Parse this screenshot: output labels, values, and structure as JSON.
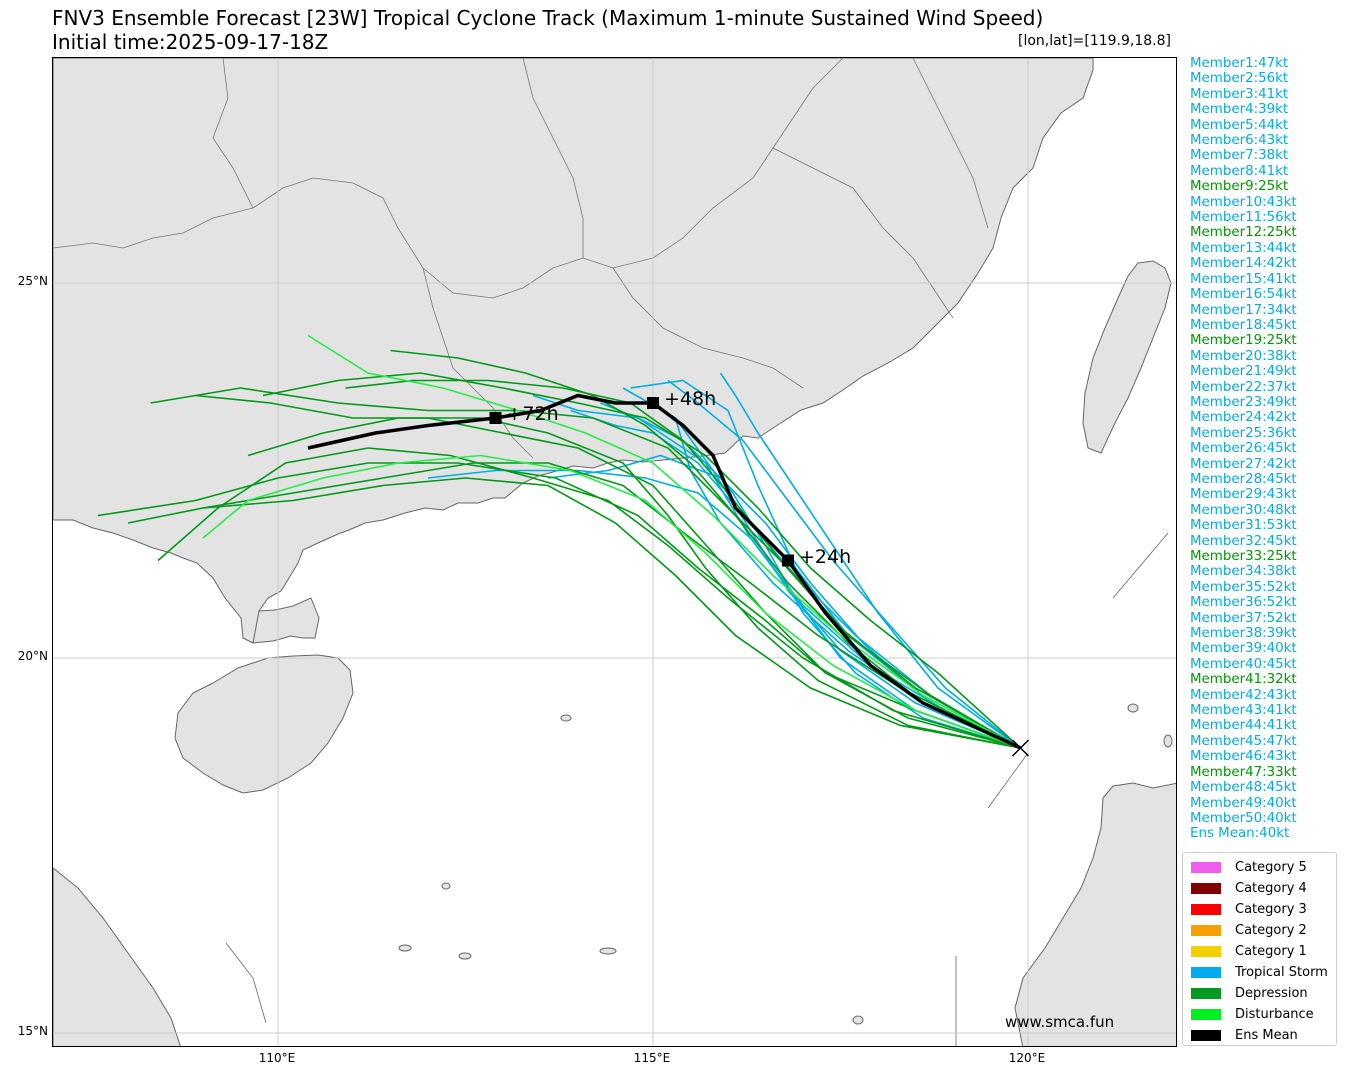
{
  "header": {
    "title": "FNV3 Ensemble Forecast [23W] Tropical Cyclone Track (Maximum 1-minute Sustained Wind Speed)",
    "subtitle": "Initial time:2025-09-17-18Z",
    "coord": "[lon,lat]=[119.9,18.8]"
  },
  "map": {
    "lon_range": [
      107.0,
      122.0
    ],
    "lat_range": [
      14.8,
      28.0
    ],
    "x_ticks": [
      "110°E",
      "115°E",
      "120°E"
    ],
    "y_ticks": [
      "25°N",
      "20°N",
      "15°N"
    ],
    "initial_position": [
      119.9,
      18.8
    ],
    "lead_labels": [
      "+24h",
      "+48h",
      "+72h"
    ],
    "land_color": "#e3e3e3",
    "coast_color": "#666666",
    "watermark": "www.smca.fun"
  },
  "members": [
    {
      "label": "Member1:47kt",
      "cat": "ts"
    },
    {
      "label": "Member2:56kt",
      "cat": "ts"
    },
    {
      "label": "Member3:41kt",
      "cat": "ts"
    },
    {
      "label": "Member4:39kt",
      "cat": "ts"
    },
    {
      "label": "Member5:44kt",
      "cat": "ts"
    },
    {
      "label": "Member6:43kt",
      "cat": "ts"
    },
    {
      "label": "Member7:38kt",
      "cat": "ts"
    },
    {
      "label": "Member8:41kt",
      "cat": "ts"
    },
    {
      "label": "Member9:25kt",
      "cat": "td"
    },
    {
      "label": "Member10:43kt",
      "cat": "ts"
    },
    {
      "label": "Member11:56kt",
      "cat": "ts"
    },
    {
      "label": "Member12:25kt",
      "cat": "td"
    },
    {
      "label": "Member13:44kt",
      "cat": "ts"
    },
    {
      "label": "Member14:42kt",
      "cat": "ts"
    },
    {
      "label": "Member15:41kt",
      "cat": "ts"
    },
    {
      "label": "Member16:54kt",
      "cat": "ts"
    },
    {
      "label": "Member17:34kt",
      "cat": "ts"
    },
    {
      "label": "Member18:45kt",
      "cat": "ts"
    },
    {
      "label": "Member19:25kt",
      "cat": "td"
    },
    {
      "label": "Member20:38kt",
      "cat": "ts"
    },
    {
      "label": "Member21:49kt",
      "cat": "ts"
    },
    {
      "label": "Member22:37kt",
      "cat": "ts"
    },
    {
      "label": "Member23:49kt",
      "cat": "ts"
    },
    {
      "label": "Member24:42kt",
      "cat": "ts"
    },
    {
      "label": "Member25:36kt",
      "cat": "ts"
    },
    {
      "label": "Member26:45kt",
      "cat": "ts"
    },
    {
      "label": "Member27:42kt",
      "cat": "ts"
    },
    {
      "label": "Member28:45kt",
      "cat": "ts"
    },
    {
      "label": "Member29:43kt",
      "cat": "ts"
    },
    {
      "label": "Member30:48kt",
      "cat": "ts"
    },
    {
      "label": "Member31:53kt",
      "cat": "ts"
    },
    {
      "label": "Member32:45kt",
      "cat": "ts"
    },
    {
      "label": "Member33:25kt",
      "cat": "td"
    },
    {
      "label": "Member34:38kt",
      "cat": "ts"
    },
    {
      "label": "Member35:52kt",
      "cat": "ts"
    },
    {
      "label": "Member36:52kt",
      "cat": "ts"
    },
    {
      "label": "Member37:52kt",
      "cat": "ts"
    },
    {
      "label": "Member38:39kt",
      "cat": "ts"
    },
    {
      "label": "Member39:40kt",
      "cat": "ts"
    },
    {
      "label": "Member40:45kt",
      "cat": "ts"
    },
    {
      "label": "Member41:32kt",
      "cat": "td"
    },
    {
      "label": "Member42:43kt",
      "cat": "ts"
    },
    {
      "label": "Member43:41kt",
      "cat": "ts"
    },
    {
      "label": "Member44:41kt",
      "cat": "ts"
    },
    {
      "label": "Member45:47kt",
      "cat": "ts"
    },
    {
      "label": "Member46:43kt",
      "cat": "ts"
    },
    {
      "label": "Member47:33kt",
      "cat": "td"
    },
    {
      "label": "Member48:45kt",
      "cat": "ts"
    },
    {
      "label": "Member49:40kt",
      "cat": "ts"
    },
    {
      "label": "Member50:40kt",
      "cat": "ts"
    },
    {
      "label": "Ens Mean:40kt",
      "cat": "ts"
    }
  ],
  "category_colors": {
    "ts": "#00aee0",
    "td": "#009900"
  },
  "legend": [
    {
      "label": "Category 5",
      "color": "#ee5eee"
    },
    {
      "label": "Category 4",
      "color": "#800000"
    },
    {
      "label": "Category 3",
      "color": "#ff0000"
    },
    {
      "label": "Category 2",
      "color": "#f5a000"
    },
    {
      "label": "Category 1",
      "color": "#f5d000"
    },
    {
      "label": "Tropical Storm",
      "color": "#00aaee"
    },
    {
      "label": "Depression",
      "color": "#009922"
    },
    {
      "label": "Disturbance",
      "color": "#00ee22"
    },
    {
      "label": "Ens Mean",
      "color": "#000000"
    }
  ],
  "chart_data": {
    "type": "track",
    "ensemble_mean": {
      "name": "Ens Mean",
      "lon": [
        119.9,
        118.6,
        117.9,
        117.3,
        116.8,
        116.1,
        115.8,
        115.4,
        115.0,
        114.5,
        114.0,
        113.5,
        112.9,
        112.0,
        111.3,
        110.4
      ],
      "lat": [
        18.8,
        19.4,
        19.9,
        20.6,
        21.3,
        22.0,
        22.7,
        23.1,
        23.4,
        23.4,
        23.5,
        23.3,
        23.2,
        23.1,
        23.0,
        22.8
      ]
    },
    "markers": [
      {
        "label": "+24h",
        "lon": 116.8,
        "lat": 21.3
      },
      {
        "label": "+48h",
        "lon": 115.0,
        "lat": 23.4
      },
      {
        "label": "+72h",
        "lon": 112.9,
        "lat": 23.2
      }
    ],
    "member_tracks": [
      {
        "cat": "ts",
        "lon": [
          119.9,
          118.9,
          117.9,
          117.0,
          116.3,
          115.7,
          114.8,
          114.0,
          113.4
        ],
        "lat": [
          18.8,
          19.3,
          19.9,
          20.7,
          21.6,
          22.6,
          23.2,
          23.3,
          23.5
        ]
      },
      {
        "cat": "ts",
        "lon": [
          119.9,
          118.6,
          117.6,
          116.9,
          116.4,
          116.0,
          115.4,
          114.7
        ],
        "lat": [
          18.8,
          19.5,
          20.3,
          21.2,
          22.3,
          23.3,
          23.7,
          23.6
        ]
      },
      {
        "cat": "ts",
        "lon": [
          119.9,
          118.7,
          117.8,
          117.1,
          116.5,
          115.9,
          115.1,
          114.4,
          113.6
        ],
        "lat": [
          18.8,
          19.4,
          20.2,
          21.0,
          21.8,
          22.4,
          22.7,
          22.5,
          22.4
        ]
      },
      {
        "cat": "ts",
        "lon": [
          119.9,
          118.8,
          118.0,
          117.4,
          116.8,
          116.4,
          116.1,
          115.9
        ],
        "lat": [
          18.8,
          19.6,
          20.6,
          21.5,
          22.4,
          23.0,
          23.5,
          23.8
        ]
      },
      {
        "cat": "ts",
        "lon": [
          119.9,
          118.5,
          117.5,
          116.9,
          116.3,
          115.6,
          114.9,
          114.0,
          112.9,
          112.0
        ],
        "lat": [
          18.8,
          19.3,
          20.0,
          20.8,
          21.6,
          22.2,
          22.4,
          22.5,
          22.5,
          22.4
        ]
      },
      {
        "cat": "ts",
        "lon": [
          119.9,
          118.7,
          117.7,
          116.9,
          116.2,
          115.6,
          115.0,
          114.5,
          113.9
        ],
        "lat": [
          18.8,
          19.5,
          20.3,
          21.1,
          21.9,
          22.6,
          23.0,
          23.1,
          23.3
        ]
      },
      {
        "cat": "ts",
        "lon": [
          119.9,
          118.6,
          117.6,
          116.6,
          115.9,
          115.5,
          115.3
        ],
        "lat": [
          18.8,
          19.4,
          20.1,
          21.0,
          21.8,
          22.5,
          23.2
        ]
      },
      {
        "cat": "ts",
        "lon": [
          119.9,
          118.9,
          118.1,
          117.4,
          116.8,
          116.2,
          115.6,
          115.2
        ],
        "lat": [
          18.8,
          19.6,
          20.5,
          21.3,
          22.1,
          22.9,
          23.4,
          23.7
        ]
      },
      {
        "cat": "ts",
        "lon": [
          119.9,
          118.6,
          117.7,
          117.0,
          116.5,
          116.0,
          115.4,
          114.8,
          114.3
        ],
        "lat": [
          18.8,
          19.2,
          19.8,
          20.6,
          21.5,
          22.3,
          22.9,
          23.2,
          23.4
        ]
      },
      {
        "cat": "ts",
        "lon": [
          119.9,
          118.5,
          117.5,
          116.8,
          116.3,
          115.8,
          115.3,
          114.6
        ],
        "lat": [
          18.8,
          19.4,
          20.1,
          20.9,
          21.7,
          22.5,
          23.2,
          23.6
        ]
      },
      {
        "cat": "td",
        "lon": [
          119.9,
          118.4,
          117.2,
          116.4,
          115.7,
          115.2,
          114.6,
          113.6,
          112.7,
          111.6,
          110.6,
          109.6
        ],
        "lat": [
          18.8,
          19.1,
          19.7,
          20.4,
          21.2,
          21.9,
          22.6,
          23.0,
          23.2,
          23.2,
          23.0,
          22.7
        ]
      },
      {
        "cat": "td",
        "lon": [
          119.9,
          118.5,
          117.3,
          116.5,
          115.8,
          115.0,
          114.0,
          113.0,
          112.0,
          111.0,
          109.9,
          108.9
        ],
        "lat": [
          18.8,
          19.3,
          19.8,
          20.6,
          21.4,
          22.3,
          22.8,
          23.0,
          23.2,
          23.2,
          23.4,
          23.5
        ]
      },
      {
        "cat": "td",
        "lon": [
          119.9,
          118.3,
          117.2,
          116.3,
          115.5,
          114.6,
          113.6,
          112.6,
          111.4,
          110.2,
          109.0,
          108.0
        ],
        "lat": [
          18.8,
          19.6,
          20.3,
          21.0,
          21.6,
          22.3,
          22.6,
          22.6,
          22.4,
          22.2,
          22.0,
          21.8
        ]
      },
      {
        "cat": "td",
        "lon": [
          119.9,
          118.6,
          117.6,
          116.8,
          116.1,
          115.5,
          114.9,
          114.2,
          113.3,
          112.4,
          111.5
        ],
        "lat": [
          18.8,
          19.4,
          20.2,
          21.0,
          21.9,
          22.6,
          23.1,
          23.5,
          23.8,
          24.0,
          24.1
        ]
      },
      {
        "cat": "td",
        "lon": [
          119.9,
          118.7,
          117.6,
          116.8,
          116.0,
          115.2,
          114.2,
          113.2,
          112.0,
          110.8,
          109.5,
          108.3
        ],
        "lat": [
          18.8,
          19.5,
          20.3,
          21.2,
          22.0,
          22.8,
          23.2,
          23.3,
          23.3,
          23.4,
          23.6,
          23.4
        ]
      },
      {
        "cat": "td",
        "lon": [
          119.9,
          118.4,
          117.3,
          116.5,
          115.6,
          114.8,
          113.7,
          112.4,
          111.2,
          110.0,
          108.9,
          107.6
        ],
        "lat": [
          18.8,
          19.2,
          19.8,
          20.5,
          21.2,
          21.9,
          22.4,
          22.6,
          22.6,
          22.4,
          22.1,
          21.9
        ]
      },
      {
        "cat": "td",
        "lon": [
          119.9,
          118.8,
          117.9,
          117.1,
          116.4,
          115.7,
          114.9,
          114.0,
          113.0,
          111.9,
          110.8,
          109.8
        ],
        "lat": [
          18.8,
          19.8,
          20.5,
          21.2,
          22.0,
          22.7,
          23.2,
          23.4,
          23.6,
          23.8,
          23.7,
          23.5
        ]
      },
      {
        "cat": "td",
        "lon": [
          119.9,
          118.3,
          117.1,
          116.1,
          115.3,
          114.5,
          113.6,
          112.5,
          111.4,
          110.2,
          109.0
        ],
        "lat": [
          18.8,
          19.1,
          19.6,
          20.3,
          21.1,
          21.8,
          22.3,
          22.4,
          22.3,
          22.1,
          22.0
        ]
      },
      {
        "cat": "td",
        "lon": [
          119.9,
          118.5,
          117.5,
          116.7,
          116.0,
          115.4,
          114.7,
          113.8,
          112.8,
          111.8,
          110.9
        ],
        "lat": [
          18.8,
          19.6,
          20.4,
          21.3,
          22.2,
          22.9,
          23.4,
          23.6,
          23.7,
          23.7,
          23.6
        ]
      },
      {
        "cat": "td",
        "lon": [
          119.9,
          118.2,
          117.0,
          116.0,
          115.2,
          114.4,
          113.4,
          112.3,
          111.2,
          110.1,
          109.2,
          108.4
        ],
        "lat": [
          18.8,
          19.3,
          20.0,
          20.8,
          21.5,
          22.1,
          22.4,
          22.7,
          22.8,
          22.6,
          22.0,
          21.3
        ]
      },
      {
        "cat": "dist",
        "lon": [
          119.9,
          118.6,
          117.5,
          116.6,
          115.8,
          115.0,
          114.1,
          113.2,
          112.2,
          111.2,
          110.4
        ],
        "lat": [
          18.8,
          19.5,
          20.3,
          21.1,
          21.9,
          22.6,
          23.0,
          23.3,
          23.6,
          23.8,
          24.3
        ]
      },
      {
        "cat": "dist",
        "lon": [
          119.9,
          118.5,
          117.4,
          116.5,
          115.7,
          114.9,
          113.9,
          112.7,
          111.6,
          110.6,
          109.6,
          109.0
        ],
        "lat": [
          18.8,
          19.3,
          19.9,
          20.6,
          21.4,
          22.1,
          22.5,
          22.7,
          22.6,
          22.4,
          22.1,
          21.6
        ]
      }
    ]
  }
}
